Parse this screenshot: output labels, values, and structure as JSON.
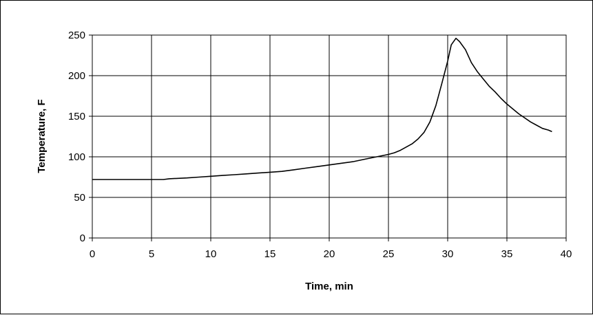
{
  "chart_data": {
    "type": "line",
    "title": "",
    "xlabel": "Time, min",
    "ylabel": "Temperature, F",
    "xlim": [
      0,
      40
    ],
    "ylim": [
      0,
      250
    ],
    "x_ticks": [
      0,
      5,
      10,
      15,
      20,
      25,
      30,
      35,
      40
    ],
    "y_ticks": [
      0,
      50,
      100,
      150,
      200,
      250
    ],
    "grid": true,
    "legend": "none",
    "series": [
      {
        "color": "#000000",
        "points": [
          [
            0,
            72
          ],
          [
            2,
            72
          ],
          [
            4,
            72
          ],
          [
            6,
            72
          ],
          [
            6.5,
            73
          ],
          [
            8,
            74
          ],
          [
            9,
            75
          ],
          [
            10,
            76
          ],
          [
            11,
            77
          ],
          [
            12,
            78
          ],
          [
            13,
            79
          ],
          [
            14,
            80
          ],
          [
            15,
            81
          ],
          [
            16,
            82
          ],
          [
            17,
            84
          ],
          [
            18,
            86
          ],
          [
            19,
            88
          ],
          [
            20,
            90
          ],
          [
            21,
            92
          ],
          [
            22,
            94
          ],
          [
            23,
            97
          ],
          [
            24,
            100
          ],
          [
            25,
            103
          ],
          [
            25.5,
            105
          ],
          [
            26,
            108
          ],
          [
            26.5,
            112
          ],
          [
            27,
            116
          ],
          [
            27.5,
            122
          ],
          [
            28,
            130
          ],
          [
            28.5,
            143
          ],
          [
            29,
            163
          ],
          [
            29.5,
            190
          ],
          [
            30,
            218
          ],
          [
            30.3,
            238
          ],
          [
            30.7,
            246
          ],
          [
            31,
            242
          ],
          [
            31.5,
            232
          ],
          [
            32,
            216
          ],
          [
            32.5,
            205
          ],
          [
            33,
            196
          ],
          [
            33.5,
            187
          ],
          [
            34,
            180
          ],
          [
            34.5,
            172
          ],
          [
            35,
            165
          ],
          [
            35.5,
            159
          ],
          [
            36,
            153
          ],
          [
            36.5,
            148
          ],
          [
            37,
            143
          ],
          [
            37.5,
            139
          ],
          [
            38,
            135
          ],
          [
            38.5,
            133
          ],
          [
            38.8,
            131
          ]
        ]
      }
    ]
  }
}
